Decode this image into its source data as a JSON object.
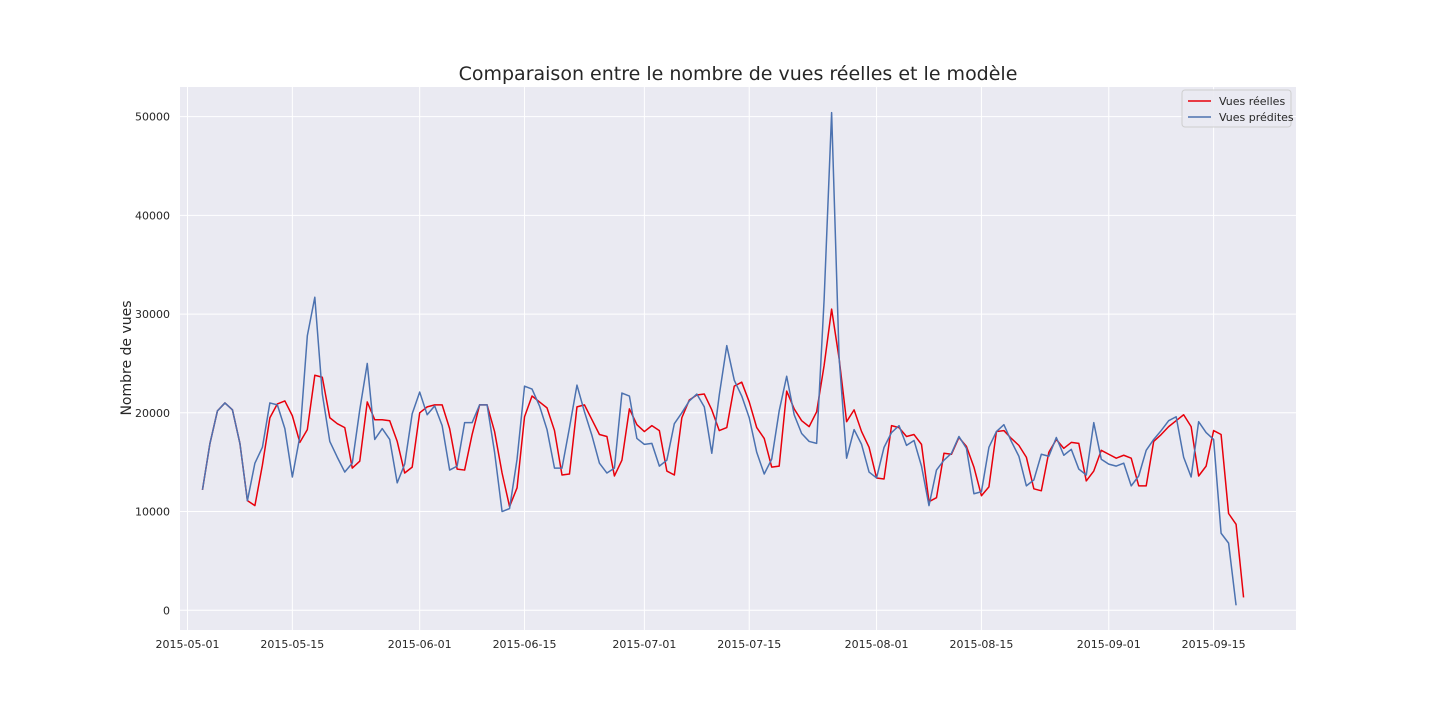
{
  "chart_data": {
    "type": "line",
    "title": "Comparaison entre le nombre de vues réelles et le modèle",
    "xlabel": "",
    "ylabel": "Nombre de vues",
    "grid": true,
    "legend_placement": "top-right",
    "xlim": [
      "2015-04-30",
      "2015-09-26"
    ],
    "ylim": [
      -2000,
      53000
    ],
    "x_ticks": [
      "2015-05-01",
      "2015-05-15",
      "2015-06-01",
      "2015-06-15",
      "2015-07-01",
      "2015-07-15",
      "2015-08-01",
      "2015-08-15",
      "2015-09-01",
      "2015-09-15"
    ],
    "y_ticks": [
      0,
      10000,
      20000,
      30000,
      40000,
      50000
    ],
    "x_start": "2015-05-03",
    "x_end": "2015-09-18",
    "series": [
      {
        "name": "Vues réelles",
        "color": "#e8000b",
        "values": [
          12200,
          16900,
          20200,
          21000,
          20300,
          16900,
          11100,
          10600,
          14700,
          19500,
          20900,
          21200,
          19700,
          17000,
          18300,
          23800,
          23600,
          19500,
          18900,
          18500,
          14400,
          15100,
          21100,
          19300,
          19300,
          19200,
          17100,
          13900,
          14500,
          20000,
          20600,
          20800,
          20800,
          18400,
          14300,
          14200,
          17800,
          20800,
          20800,
          18100,
          13900,
          10500,
          12400,
          19600,
          21700,
          21100,
          20500,
          18200,
          13700,
          13800,
          20600,
          20800,
          19300,
          17800,
          17600,
          13600,
          15200,
          20400,
          18800,
          18100,
          18700,
          18200,
          14100,
          13700,
          19500,
          21300,
          21800,
          21900,
          20300,
          18200,
          18500,
          22700,
          23100,
          21100,
          18500,
          17400,
          14500,
          14600,
          22200,
          20400,
          19200,
          18600,
          20100,
          24800,
          30500,
          25500,
          19100,
          20300,
          18100,
          16500,
          13400,
          13300,
          18700,
          18500,
          17600,
          17800,
          16800,
          11000,
          11400,
          15900,
          15800,
          17500,
          16600,
          14500,
          11600,
          12500,
          18100,
          18200,
          17400,
          16700,
          15500,
          12300,
          12100,
          16000,
          17300,
          16400,
          17000,
          16900,
          13100,
          14100,
          16200,
          15800,
          15400,
          15700,
          15400,
          12600,
          12600,
          17100,
          17800,
          18600,
          19200,
          19800,
          18600,
          13600,
          14600,
          18200,
          17800,
          9800,
          8700,
          1300
        ]
      },
      {
        "name": "Vues prédites",
        "color": "#4c72b0",
        "values": [
          12200,
          16900,
          20200,
          21000,
          20300,
          16900,
          11100,
          14900,
          16500,
          21000,
          20800,
          18400,
          13500,
          17600,
          27800,
          31700,
          21900,
          17100,
          15500,
          14000,
          14900,
          20300,
          25000,
          17300,
          18400,
          17300,
          12900,
          14800,
          19900,
          22100,
          19800,
          20700,
          18700,
          14200,
          14600,
          19000,
          19000,
          20800,
          20800,
          16000,
          10000,
          10300,
          15300,
          22700,
          22400,
          20700,
          18300,
          14400,
          14400,
          18500,
          22800,
          20100,
          17700,
          14900,
          13900,
          14400,
          22000,
          21700,
          17400,
          16800,
          16900,
          14600,
          15200,
          18900,
          20000,
          21200,
          21900,
          20600,
          15900,
          21800,
          26800,
          23300,
          21700,
          19500,
          16000,
          13800,
          15300,
          20200,
          23700,
          19800,
          17900,
          17100,
          16900,
          31500,
          50400,
          25600,
          15400,
          18300,
          16800,
          14000,
          13400,
          16500,
          18000,
          18700,
          16700,
          17200,
          14600,
          10600,
          14200,
          15200,
          15900,
          17600,
          16400,
          11800,
          12000,
          16500,
          18100,
          18800,
          17100,
          15600,
          12600,
          13200,
          15800,
          15600,
          17500,
          15700,
          16300,
          14300,
          13700,
          19000,
          15300,
          14800,
          14600,
          14900,
          12600,
          13600,
          16200,
          17300,
          18200,
          19200,
          19600,
          15500,
          13500,
          19100,
          18000,
          17300,
          7800,
          6800,
          500
        ]
      }
    ]
  }
}
